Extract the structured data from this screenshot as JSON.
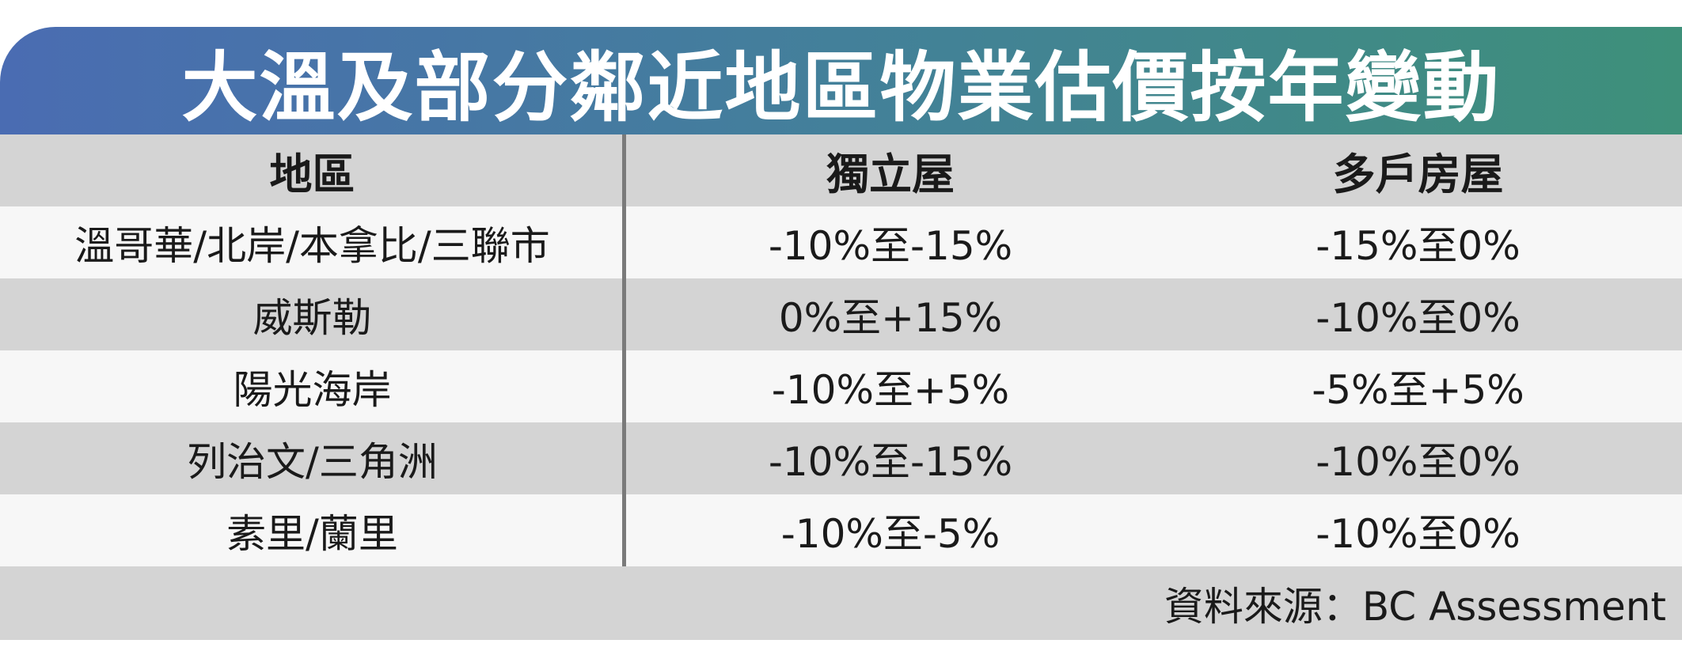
{
  "header": {
    "title": "大溫及部分鄰近地區物業估價按年變動"
  },
  "table": {
    "columns": [
      "地區",
      "獨立屋",
      "多戶房屋"
    ],
    "rows": [
      [
        "溫哥華/北岸/本拿比/三聯市",
        "-10%至-15%",
        "-15%至0%"
      ],
      [
        "威斯勒",
        "0%至+15%",
        "-10%至0%"
      ],
      [
        "陽光海岸",
        "-10%至+5%",
        "-5%至+5%"
      ],
      [
        "列治文/三角洲",
        "-10%至-15%",
        "-10%至0%"
      ],
      [
        "素里/蘭里",
        "-10%至-5%",
        "-10%至0%"
      ]
    ]
  },
  "source": "資料來源：BC Assessment"
}
